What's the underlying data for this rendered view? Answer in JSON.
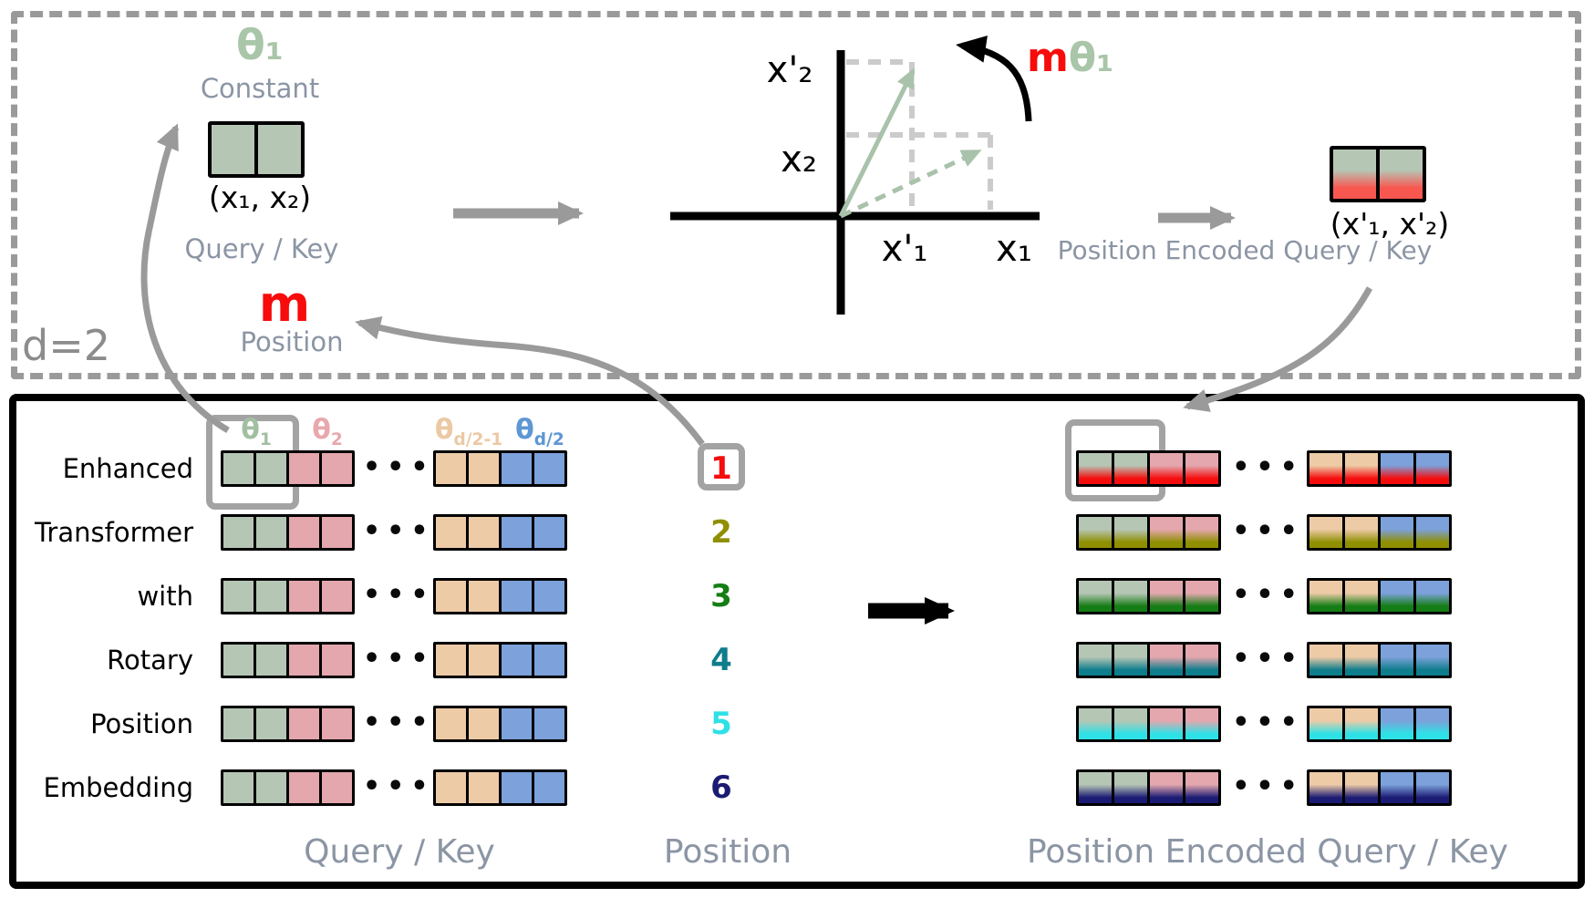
{
  "top_panel": {
    "d_label": "d=2",
    "theta1_label": "θ₁",
    "constant_label": "Constant",
    "vector_label": "(x₁, x₂)",
    "query_key_label": "Query / Key",
    "m_label": "m",
    "position_label": "Position",
    "axis_labels": {
      "x2_rotated": "x'₂",
      "x2": "x₂",
      "x1_rotated": "x'₁",
      "x1": "x₁"
    },
    "rotation_label_m": "m",
    "rotation_label_theta": "θ₁",
    "encoded_vector_label": "(x'₁, x'₂)",
    "encoded_label": "Position Encoded Query / Key"
  },
  "bottom_panel": {
    "theta_headers": [
      {
        "main": "θ",
        "sub": "1",
        "color": "#a3bfa2"
      },
      {
        "main": "θ",
        "sub": "2",
        "color": "#e8a8ae"
      },
      {
        "main": "θ",
        "sub": "d/2-1",
        "color": "#ecc9a4"
      },
      {
        "main": "θ",
        "sub": "d/2",
        "color": "#5e97d3"
      }
    ],
    "rows": [
      {
        "word": "Enhanced",
        "position": "1",
        "position_color": "#f50d0d",
        "highlighted": true
      },
      {
        "word": "Transformer",
        "position": "2",
        "position_color": "#8f8f00",
        "highlighted": false
      },
      {
        "word": "with",
        "position": "3",
        "position_color": "#157d15",
        "highlighted": false
      },
      {
        "word": "Rotary",
        "position": "4",
        "position_color": "#0e7d8c",
        "highlighted": false
      },
      {
        "word": "Position",
        "position": "5",
        "position_color": "#2ee1e6",
        "highlighted": false
      },
      {
        "word": "Embedding",
        "position": "6",
        "position_color": "#1b1b74",
        "highlighted": false
      }
    ],
    "cell_pattern_left": [
      "cell_green",
      "cell_green",
      "cell_pink",
      "cell_pink"
    ],
    "cell_pattern_right": [
      "cell_tan",
      "cell_tan",
      "cell_blue",
      "cell_blue"
    ],
    "ellipsis": "•••",
    "labels": {
      "query_key": "Query / Key",
      "position": "Position",
      "encoded": "Position Encoded Query / Key"
    }
  },
  "colors": {
    "cell_green": "#b6c6b5",
    "cell_pink": "#e4a7ae",
    "cell_tan": "#edcba7",
    "cell_blue": "#7ca1db",
    "accent_red": "#f70b0b",
    "accent_red_soft": "#f85750",
    "theta_green": "#a9c6a8",
    "gray_label": "#8b95a4",
    "gray_border": "#9a9a9a"
  }
}
